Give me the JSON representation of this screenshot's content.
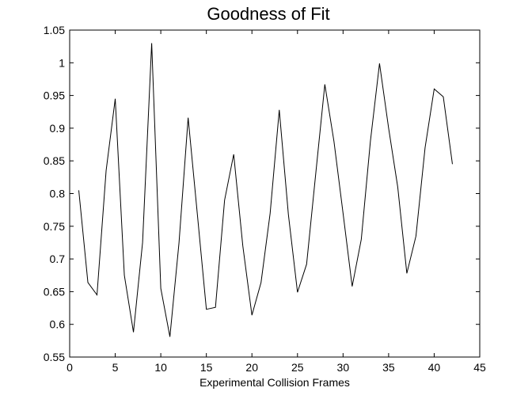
{
  "chart_data": {
    "type": "line",
    "title": "Goodness of Fit",
    "xlabel": "Experimental Collision Frames",
    "ylabel": "",
    "xlim": [
      0,
      45
    ],
    "ylim": [
      0.55,
      1.05
    ],
    "xticks": [
      0,
      5,
      10,
      15,
      20,
      25,
      30,
      35,
      40,
      45
    ],
    "yticks": [
      0.55,
      0.6,
      0.65,
      0.7,
      0.75,
      0.8,
      0.85,
      0.9,
      0.95,
      1,
      1.05
    ],
    "xtick_labels": [
      "0",
      "5",
      "10",
      "15",
      "20",
      "25",
      "30",
      "35",
      "40",
      "45"
    ],
    "ytick_labels": [
      "0.55",
      "0.6",
      "0.65",
      "0.7",
      "0.75",
      "0.8",
      "0.85",
      "0.9",
      "0.95",
      "1",
      "1.05"
    ],
    "grid": false,
    "line_color": "#000000",
    "series": [
      {
        "x": [
          1,
          2,
          3,
          4,
          5,
          6,
          7,
          8,
          9,
          10,
          11,
          12,
          13,
          14,
          15,
          16,
          17,
          18,
          19,
          20,
          21,
          22,
          23,
          24,
          25,
          26,
          27,
          28,
          29,
          30,
          31,
          32,
          33,
          34,
          35,
          36,
          37,
          38,
          39,
          40,
          41,
          42
        ],
        "values": [
          0.805,
          0.664,
          0.645,
          0.835,
          0.945,
          0.675,
          0.588,
          0.725,
          1.03,
          0.655,
          0.581,
          0.725,
          0.916,
          0.77,
          0.623,
          0.626,
          0.79,
          0.86,
          0.72,
          0.614,
          0.664,
          0.77,
          0.928,
          0.768,
          0.649,
          0.692,
          0.83,
          0.967,
          0.88,
          0.77,
          0.658,
          0.73,
          0.88,
          0.999,
          0.9,
          0.81,
          0.678,
          0.735,
          0.87,
          0.96,
          0.948,
          0.845
        ]
      }
    ]
  }
}
